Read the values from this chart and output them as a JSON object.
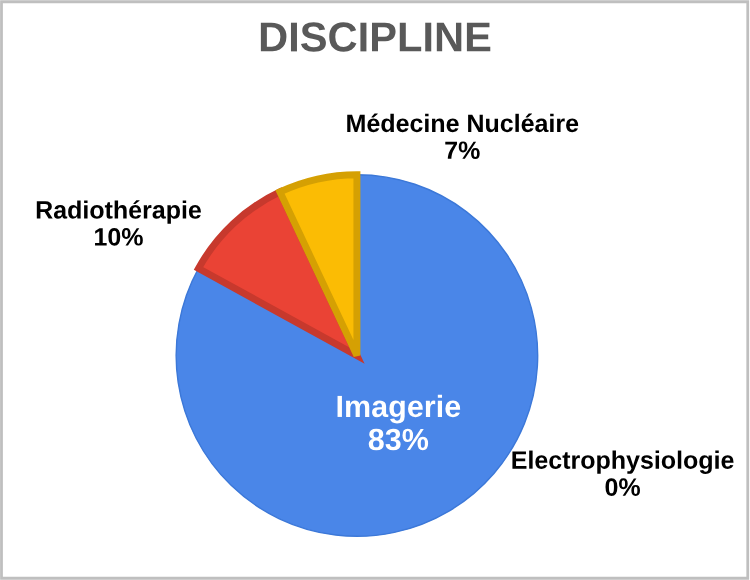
{
  "chart_data": {
    "type": "pie",
    "title": "DISCIPLINE",
    "categories": [
      "Imagerie",
      "Radiothérapie",
      "Médecine Nucléaire",
      "Electrophysiologie"
    ],
    "values": [
      83,
      10,
      7,
      0
    ],
    "colors": [
      "#4a86e8",
      "#ea4335",
      "#fbbc04",
      "#34a853"
    ],
    "value_labels": [
      "83%",
      "10%",
      "7%",
      "0%"
    ],
    "legend": false
  }
}
